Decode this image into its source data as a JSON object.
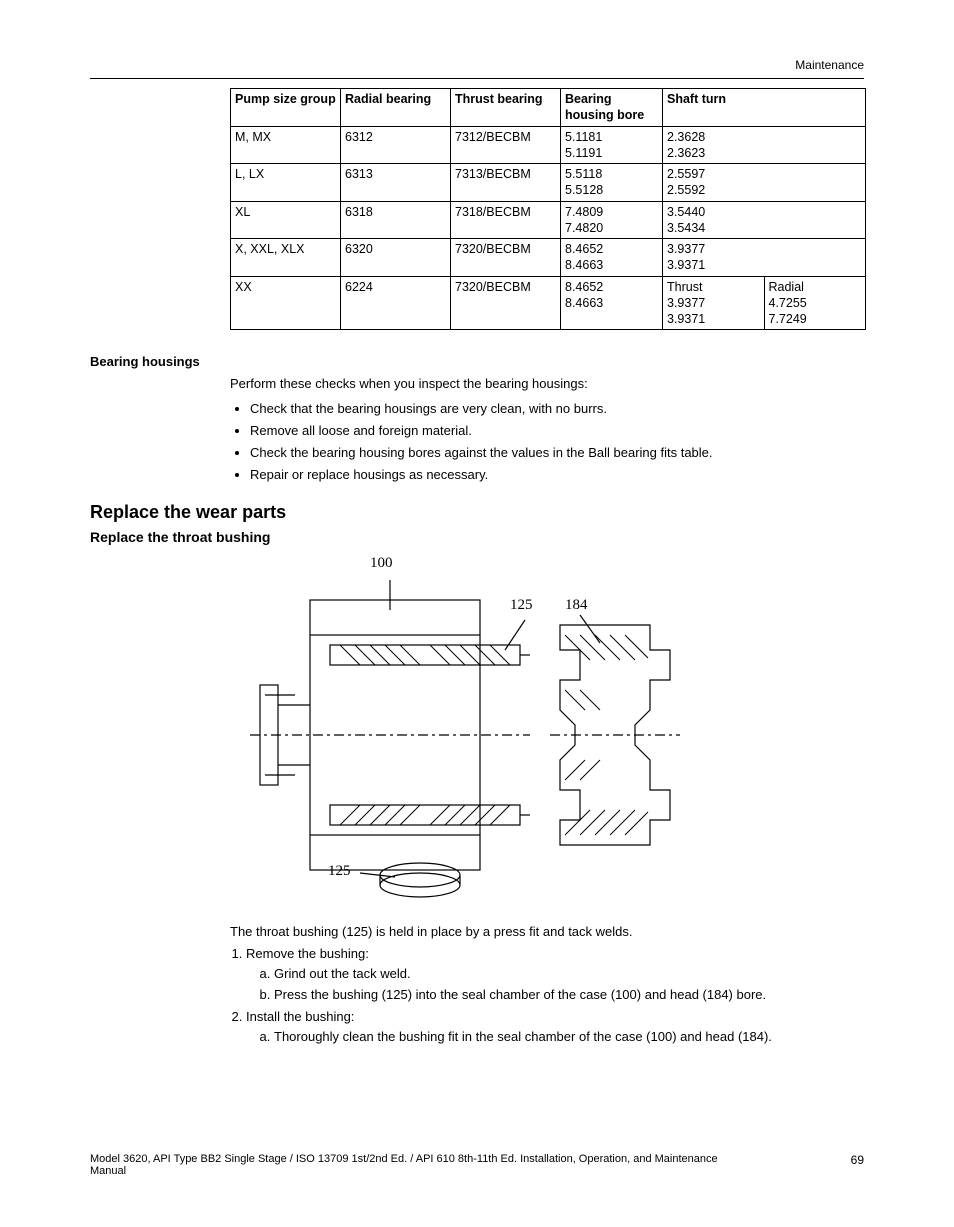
{
  "header": {
    "section_label": "Maintenance"
  },
  "table": {
    "columns": [
      "Pump size group",
      "Radial bearing",
      "Thrust bearing",
      "Bearing housing bore",
      "Shaft turn"
    ],
    "rows": [
      {
        "group": "M, MX",
        "radial": "6312",
        "thrust": "7312/BECBM",
        "bore": "5.1181\n5.1191",
        "shaft": "2.3628\n2.3623"
      },
      {
        "group": "L, LX",
        "radial": "6313",
        "thrust": "7313/BECBM",
        "bore": "5.5118\n5.5128",
        "shaft": "2.5597\n2.5592"
      },
      {
        "group": "XL",
        "radial": "6318",
        "thrust": "7318/BECBM",
        "bore": "7.4809\n7.4820",
        "shaft": "3.5440\n3.5434"
      },
      {
        "group": "X, XXL, XLX",
        "radial": "6320",
        "thrust": "7320/BECBM",
        "bore": "8.4652\n8.4663",
        "shaft": "3.9377\n3.9371"
      },
      {
        "group": "XX",
        "radial": "6224",
        "thrust": "7320/BECBM",
        "bore": "8.4652\n8.4663",
        "shaft_split": {
          "left": "Thrust\n3.9377\n3.9371",
          "right": "Radial\n4.7255\n7.7249"
        }
      }
    ]
  },
  "bearing_housings": {
    "heading": "Bearing housings",
    "intro": "Perform these checks when you inspect the bearing housings:",
    "bullets": [
      "Check that the bearing housings are very clean, with no burrs.",
      "Remove all loose and foreign material.",
      "Check the bearing housing bores against the values in the Ball bearing fits table.",
      "Repair or replace housings as necessary."
    ]
  },
  "replace_wear": {
    "h2": "Replace the wear parts",
    "h3": "Replace the throat bushing",
    "figure_labels": {
      "l100": "100",
      "l125t": "125",
      "l184": "184",
      "l125b": "125"
    },
    "intro": "The throat bushing (125) is held in place by a press fit and tack welds.",
    "steps": [
      {
        "text": "Remove the bushing:",
        "sub": [
          "Grind out the tack weld.",
          "Press the bushing (125) into the seal chamber of the case (100) and head (184) bore."
        ]
      },
      {
        "text": "Install the bushing:",
        "sub": [
          "Thoroughly clean the bushing fit in the seal chamber of the case (100) and head (184)."
        ]
      }
    ]
  },
  "footer": {
    "text": "Model 3620, API Type BB2 Single Stage / ISO 13709 1st/2nd Ed. / API 610 8th-11th Ed. Installation, Operation, and Maintenance Manual",
    "page": "69"
  }
}
